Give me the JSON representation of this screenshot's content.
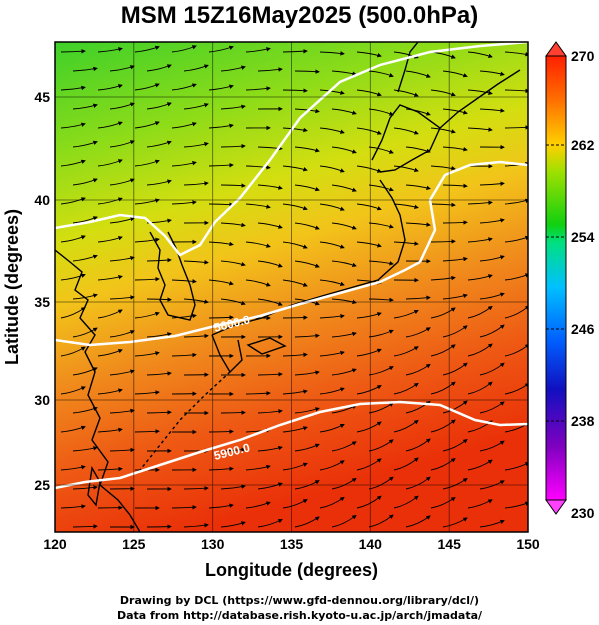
{
  "title": "MSM 15Z16May2025 (500.0hPa)",
  "credits": {
    "line1": "Drawing by DCL (https://www.gfd-dennou.org/library/dcl/)",
    "line2": "Data from http://database.rish.kyoto-u.ac.jp/arch/jmadata/"
  },
  "map": {
    "lon_range": [
      120,
      150
    ],
    "lat_range": [
      22.4,
      47.6
    ],
    "xlabel": "Longitude (degrees)",
    "ylabel": "Latitude  (degrees)",
    "x_ticks": [
      "120",
      "125",
      "130",
      "135",
      "140",
      "145",
      "150"
    ],
    "y_ticks": [
      "25",
      "30",
      "35",
      "40",
      "45"
    ],
    "contours": [
      {
        "label": "5600.0"
      },
      {
        "label": "5900.0"
      }
    ],
    "shading": "temperature color map"
  },
  "colorbar": {
    "min": 230,
    "max": 270,
    "tick_labels": [
      "270",
      "262",
      "254",
      "246",
      "238",
      "230"
    ],
    "colors": [
      "#ff00ff",
      "#2000c0",
      "#0050ff",
      "#00c0ff",
      "#00e080",
      "#10d010",
      "#a0e000",
      "#ffd000",
      "#ff7000",
      "#ff2000"
    ]
  }
}
